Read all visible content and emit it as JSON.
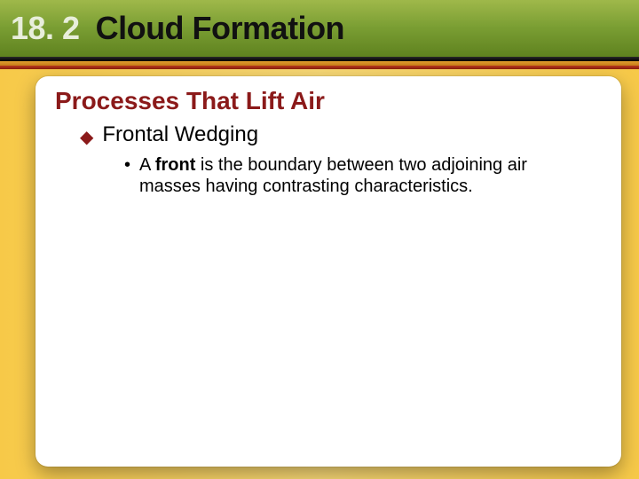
{
  "header": {
    "section_number": "18. 2",
    "title": "Cloud Formation",
    "band_gradient": [
      "#9fb84a",
      "#7a9e33",
      "#5f821f"
    ],
    "underline_colors": [
      "#000000",
      "#c87a1a",
      "#8a1e0c"
    ],
    "number_color": "#e8eedb",
    "title_color": "#111111",
    "title_fontsize": 36,
    "title_fontweight": "bold"
  },
  "background": {
    "gradient": [
      "#f7c948",
      "#f9d976",
      "#f7c948"
    ]
  },
  "panel": {
    "background_color": "#ffffff",
    "border_radius": 14,
    "shadow": "0 8px 22px rgba(0,0,0,0.35)"
  },
  "content": {
    "subheading": "Processes That Lift Air",
    "subheading_color": "#8b1a1a",
    "subheading_fontsize": 28,
    "bullets": [
      {
        "level": 1,
        "marker": "◆",
        "marker_color": "#8b1a1a",
        "text": "Frontal Wedging",
        "fontsize": 24
      },
      {
        "level": 2,
        "marker": "•",
        "marker_color": "#000000",
        "text_prefix": "A ",
        "text_bold": "front",
        "text_suffix": " is the boundary between two adjoining air masses having contrasting characteristics.",
        "fontsize": 20
      }
    ]
  }
}
